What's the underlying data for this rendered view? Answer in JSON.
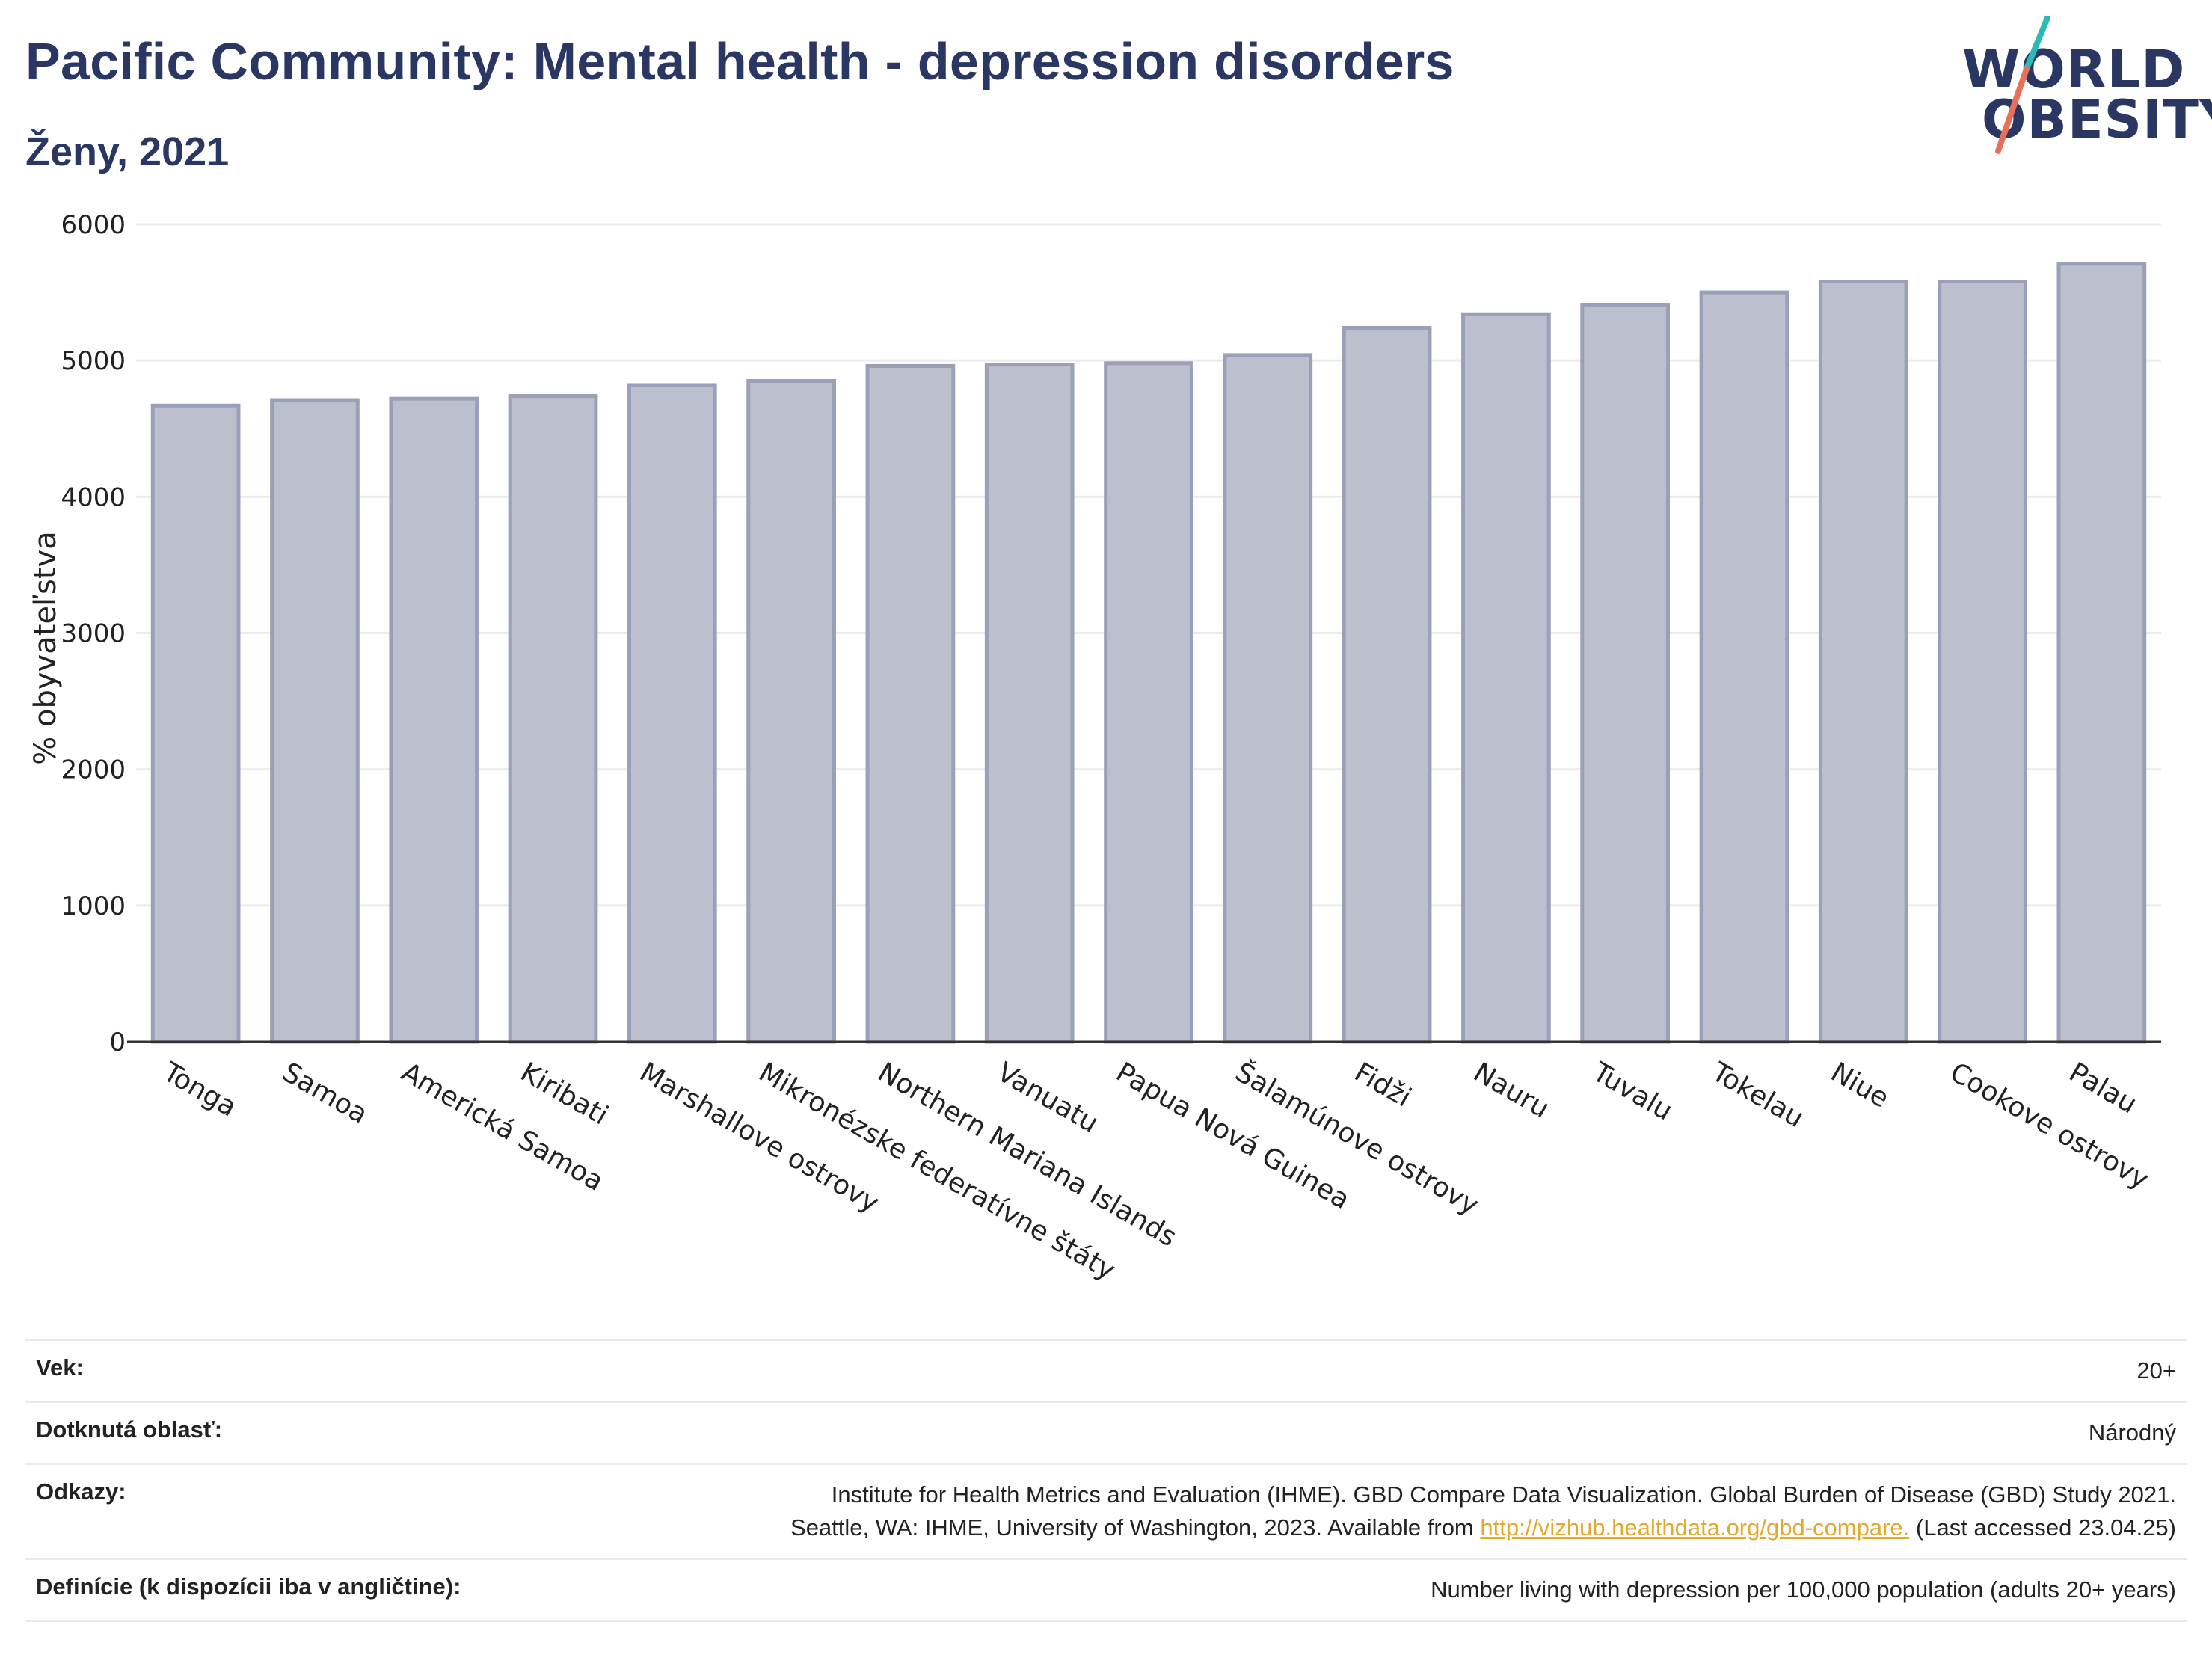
{
  "header": {
    "title": "Pacific Community: Mental health - depression disorders",
    "subtitle": "Ženy, 2021"
  },
  "logo": {
    "line1": "WORLD",
    "line2": "OBESITY",
    "colors": {
      "text": "#2b3763",
      "slash_top": "#2bbbb5",
      "slash_bottom": "#e8705b"
    }
  },
  "colors": {
    "bar_fill": "#bcc0ce",
    "bar_stroke": "#9aa0b8",
    "grid": "#e9ebef",
    "axis": "#333333"
  },
  "chart_data": {
    "type": "bar",
    "title": "",
    "xlabel": "",
    "ylabel": "% obyvateľstva",
    "ylim": [
      0,
      6000
    ],
    "yticks": [
      0,
      1000,
      2000,
      3000,
      4000,
      5000,
      6000
    ],
    "grid": true,
    "categories": [
      "Tonga",
      "Samoa",
      "Americká Samoa",
      "Kiribati",
      "Marshallove ostrovy",
      "Mikronézske federatívne štáty",
      "Northern Mariana Islands",
      "Vanuatu",
      "Papua Nová Guinea",
      "Šalamúnove ostrovy",
      "Fidži",
      "Nauru",
      "Tuvalu",
      "Tokelau",
      "Niue",
      "Cookove ostrovy",
      "Palau"
    ],
    "values": [
      4670,
      4710,
      4720,
      4740,
      4820,
      4850,
      4960,
      4970,
      4980,
      5040,
      5240,
      5340,
      5410,
      5500,
      5580,
      5580,
      5710
    ]
  },
  "meta": [
    {
      "label": "Vek:",
      "value": [
        "20+"
      ]
    },
    {
      "label": "Dotknutá oblasť:",
      "value": [
        "Národný"
      ]
    },
    {
      "label": "Odkazy:",
      "value": [
        "Institute for Health Metrics and Evaluation (IHME). GBD Compare Data Visualization. Global Burden of Disease (GBD) Study 2021.",
        "Seattle, WA: IHME, University of Washington, 2023. Available from"
      ],
      "link": "http://vizhub.healthdata.org/gbd-compare.",
      "after_link": "(Last accessed 23.04.25)"
    },
    {
      "label": "Definície (k dispozícii iba v angličtine):",
      "value": [
        "Number living with depression per 100,000 population (adults 20+ years)"
      ]
    }
  ]
}
